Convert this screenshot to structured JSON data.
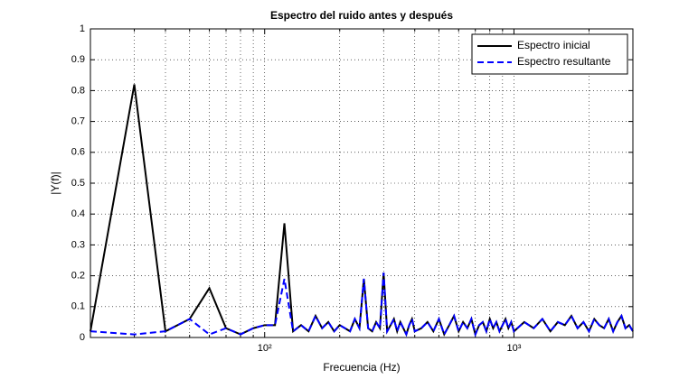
{
  "chart_data": {
    "type": "line",
    "title": "Espectro del ruido antes y después",
    "x_label": "Frecuencia (Hz)",
    "y_label": "|Y(f)|",
    "x_scale": "log",
    "grid": true,
    "legend_position": "top-right",
    "xlim": [
      20,
      3000
    ],
    "ylim": [
      0,
      1
    ],
    "xticks": [
      {
        "value": 100,
        "label": "10²"
      },
      {
        "value": 1000,
        "label": "10³"
      }
    ],
    "xminorticks": [
      30,
      40,
      50,
      60,
      70,
      80,
      90,
      200,
      300,
      400,
      500,
      600,
      700,
      800,
      900,
      2000
    ],
    "yticks": [
      0,
      0.1,
      0.2,
      0.3,
      0.4,
      0.5,
      0.6,
      0.7,
      0.8,
      0.9,
      1
    ],
    "x": [
      20,
      30,
      40,
      50,
      60,
      70,
      80,
      90,
      100,
      110,
      120,
      130,
      140,
      150,
      160,
      170,
      180,
      190,
      200,
      210,
      220,
      230,
      240,
      250,
      260,
      270,
      280,
      290,
      300,
      310,
      320,
      330,
      340,
      350,
      360,
      370,
      380,
      390,
      400,
      425,
      450,
      475,
      500,
      525,
      550,
      575,
      600,
      625,
      650,
      675,
      700,
      725,
      750,
      775,
      800,
      825,
      850,
      875,
      900,
      925,
      950,
      975,
      1000,
      1100,
      1200,
      1300,
      1400,
      1500,
      1600,
      1700,
      1800,
      1900,
      2000,
      2100,
      2200,
      2300,
      2400,
      2500,
      2600,
      2700,
      2800,
      2900,
      3000
    ],
    "series": [
      {
        "name": "Espectro inicial",
        "color": "#000000",
        "dash": "solid",
        "values": [
          0.02,
          0.82,
          0.02,
          0.06,
          0.16,
          0.03,
          0.01,
          0.03,
          0.04,
          0.04,
          0.37,
          0.02,
          0.04,
          0.02,
          0.07,
          0.03,
          0.05,
          0.02,
          0.04,
          0.03,
          0.02,
          0.06,
          0.03,
          0.19,
          0.03,
          0.02,
          0.05,
          0.03,
          0.21,
          0.02,
          0.04,
          0.06,
          0.02,
          0.05,
          0.03,
          0.01,
          0.04,
          0.06,
          0.02,
          0.03,
          0.05,
          0.02,
          0.06,
          0.01,
          0.04,
          0.07,
          0.02,
          0.05,
          0.03,
          0.06,
          0.01,
          0.04,
          0.05,
          0.02,
          0.06,
          0.03,
          0.05,
          0.02,
          0.04,
          0.06,
          0.03,
          0.05,
          0.02,
          0.05,
          0.03,
          0.06,
          0.02,
          0.05,
          0.04,
          0.07,
          0.03,
          0.05,
          0.02,
          0.06,
          0.04,
          0.03,
          0.06,
          0.02,
          0.05,
          0.07,
          0.03,
          0.04,
          0.02
        ]
      },
      {
        "name": "Espectro resultante",
        "color": "#0000ff",
        "dash": "dashed",
        "values": [
          0.02,
          0.01,
          0.02,
          0.06,
          0.01,
          0.03,
          0.01,
          0.03,
          0.04,
          0.04,
          0.19,
          0.02,
          0.04,
          0.02,
          0.07,
          0.03,
          0.05,
          0.02,
          0.04,
          0.03,
          0.02,
          0.06,
          0.03,
          0.19,
          0.03,
          0.02,
          0.05,
          0.03,
          0.21,
          0.02,
          0.04,
          0.06,
          0.02,
          0.05,
          0.03,
          0.01,
          0.04,
          0.06,
          0.02,
          0.03,
          0.05,
          0.02,
          0.06,
          0.01,
          0.04,
          0.07,
          0.02,
          0.05,
          0.03,
          0.06,
          0.01,
          0.04,
          0.05,
          0.02,
          0.06,
          0.03,
          0.05,
          0.02,
          0.04,
          0.06,
          0.03,
          0.05,
          0.02,
          0.05,
          0.03,
          0.06,
          0.02,
          0.05,
          0.04,
          0.07,
          0.03,
          0.05,
          0.02,
          0.06,
          0.04,
          0.03,
          0.06,
          0.02,
          0.05,
          0.07,
          0.03,
          0.04,
          0.02
        ]
      }
    ]
  }
}
